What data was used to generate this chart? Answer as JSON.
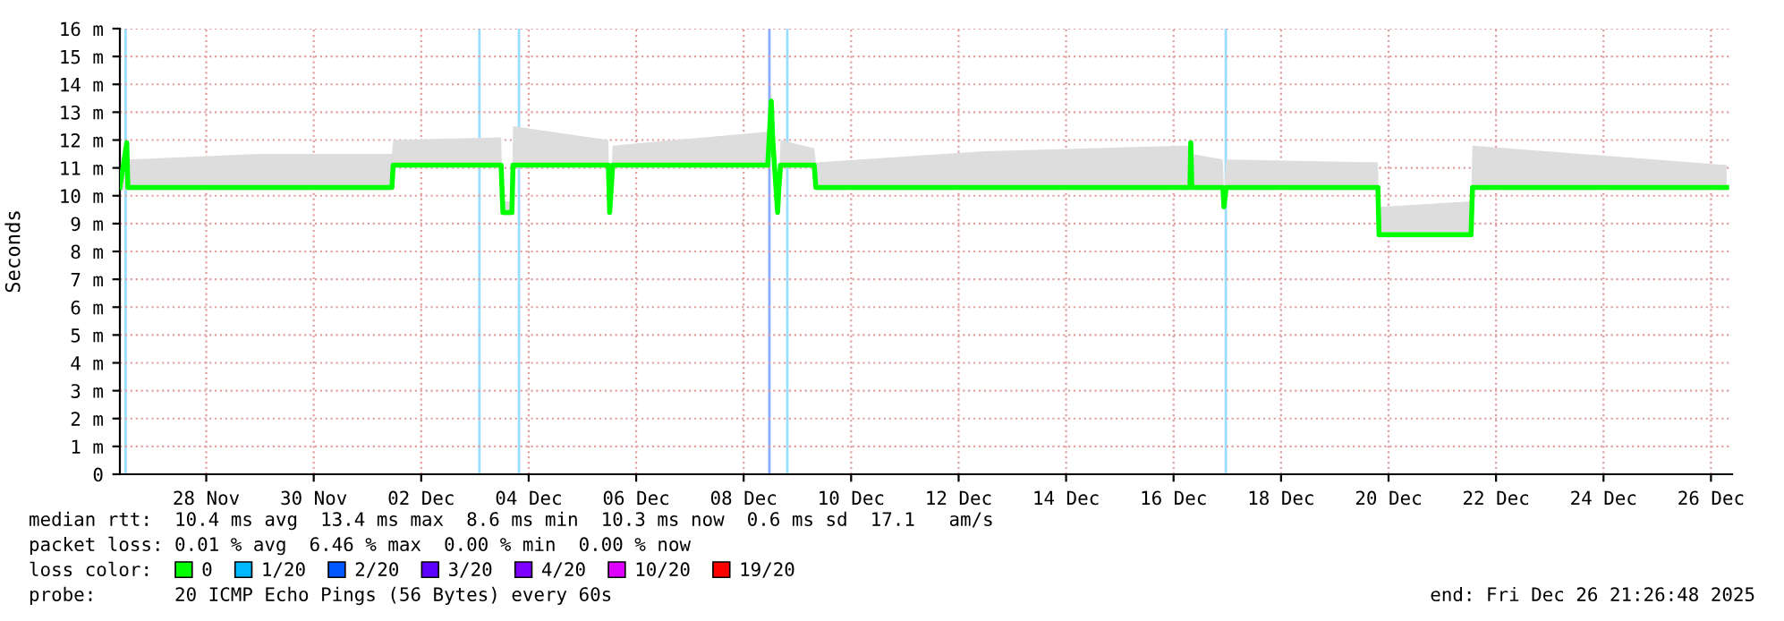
{
  "chart_data": {
    "type": "line",
    "ylabel": "Seconds",
    "xlim": [
      "2025-11-26T21:26",
      "2025-12-26T21:26"
    ],
    "xticks": [
      {
        "value": "2025-11-28T12:00",
        "label": "28 Nov"
      },
      {
        "value": "2025-11-30T12:00",
        "label": "30 Nov"
      },
      {
        "value": "2025-12-02T12:00",
        "label": "02 Dec"
      },
      {
        "value": "2025-12-04T12:00",
        "label": "04 Dec"
      },
      {
        "value": "2025-12-06T12:00",
        "label": "06 Dec"
      },
      {
        "value": "2025-12-08T12:00",
        "label": "08 Dec"
      },
      {
        "value": "2025-12-10T12:00",
        "label": "10 Dec"
      },
      {
        "value": "2025-12-12T12:00",
        "label": "12 Dec"
      },
      {
        "value": "2025-12-14T12:00",
        "label": "14 Dec"
      },
      {
        "value": "2025-12-16T12:00",
        "label": "16 Dec"
      },
      {
        "value": "2025-12-18T12:00",
        "label": "18 Dec"
      },
      {
        "value": "2025-12-20T12:00",
        "label": "20 Dec"
      },
      {
        "value": "2025-12-22T12:00",
        "label": "22 Dec"
      },
      {
        "value": "2025-12-24T12:00",
        "label": "24 Dec"
      },
      {
        "value": "2025-12-26T12:00",
        "label": "26 Dec"
      }
    ],
    "ylim": [
      0,
      16
    ],
    "yticks": [
      0,
      {
        "value": 1,
        "label": "1 m"
      },
      {
        "value": 2,
        "label": "2 m"
      },
      {
        "value": 3,
        "label": "3 m"
      },
      {
        "value": 4,
        "label": "4 m"
      },
      {
        "value": 5,
        "label": "5 m"
      },
      {
        "value": 6,
        "label": "6 m"
      },
      {
        "value": 7,
        "label": "7 m"
      },
      {
        "value": 8,
        "label": "8 m"
      },
      {
        "value": 9,
        "label": "9 m"
      },
      {
        "value": 10,
        "label": "10 m"
      },
      {
        "value": 11,
        "label": "11 m"
      },
      {
        "value": 12,
        "label": "12 m"
      },
      {
        "value": 13,
        "label": "13 m"
      },
      {
        "value": 14,
        "label": "14 m"
      },
      {
        "value": 15,
        "label": "15 m"
      },
      {
        "value": 16,
        "label": "16 m"
      }
    ],
    "grid": true,
    "legend": "bottom",
    "legend_title": "loss color:",
    "line_style": "solid",
    "series": [
      {
        "name": "0",
        "color": "#00ff00",
        "x": [
          "2025-11-26T21:26",
          "2025-11-27T00:30",
          "2025-11-27T01:00",
          "2025-11-29T12:00",
          "2025-12-01T22:55",
          "2025-12-01T23:30",
          "2025-12-03T23:40",
          "2025-12-04T00:30",
          "2025-12-04T04:30",
          "2025-12-04T05:00",
          "2025-12-05T23:35",
          "2025-12-06T00:10",
          "2025-12-06T01:30",
          "2025-12-08T22:45",
          "2025-12-09T00:20",
          "2025-12-09T01:00",
          "2025-12-09T02:30",
          "2025-12-09T03:10",
          "2025-12-09T03:40",
          "2025-12-09T04:30",
          "2025-12-09T19:30",
          "2025-12-09T20:15",
          "2025-12-13T00:00",
          "2025-12-16T19:20",
          "2025-12-16T19:40",
          "2025-12-16T20:10",
          "2025-12-17T10:00",
          "2025-12-17T10:30",
          "2025-12-17T11:30",
          "2025-12-20T07:15",
          "2025-12-20T07:45",
          "2025-12-22T00:50",
          "2025-12-22T01:30",
          "2025-12-26T19:00"
        ],
        "values": [
          10.3,
          11.9,
          10.3,
          10.3,
          10.3,
          11.1,
          11.1,
          9.4,
          9.4,
          11.1,
          11.1,
          9.4,
          11.1,
          11.1,
          13.4,
          12.0,
          10.2,
          9.4,
          10.2,
          11.1,
          11.1,
          10.3,
          10.3,
          10.3,
          11.9,
          10.3,
          10.3,
          9.6,
          10.3,
          10.3,
          8.6,
          8.6,
          10.3,
          10.3
        ],
        "lower": [
          10.2,
          10.2,
          10.2,
          10.2,
          10.2,
          11.0,
          11.0,
          9.3,
          9.3,
          11.0,
          11.0,
          9.3,
          11.0,
          11.0,
          13.0,
          11.0,
          10.1,
          9.3,
          10.1,
          11.0,
          11.0,
          10.2,
          10.2,
          10.2,
          10.3,
          10.2,
          10.2,
          9.5,
          10.2,
          10.2,
          8.5,
          8.5,
          10.2,
          10.2
        ],
        "upper": [
          11.0,
          11.9,
          11.3,
          11.5,
          11.5,
          12.0,
          12.1,
          9.8,
          9.8,
          12.5,
          12.0,
          9.5,
          11.8,
          12.3,
          14.0,
          12.5,
          10.5,
          9.5,
          10.5,
          12.0,
          11.7,
          11.2,
          11.6,
          11.8,
          12.2,
          11.5,
          11.3,
          10.2,
          11.3,
          11.2,
          9.6,
          9.8,
          11.8,
          11.1
        ]
      },
      {
        "name": "1/20",
        "color": "#00b8ff"
      },
      {
        "name": "2/20",
        "color": "#0059ff"
      },
      {
        "name": "3/20",
        "color": "#5e00ff"
      },
      {
        "name": "4/20",
        "color": "#7e00ff"
      },
      {
        "name": "10/20",
        "color": "#dd00ff"
      },
      {
        "name": "19/20",
        "color": "#ff0000"
      }
    ],
    "ref_lines": [
      {
        "axis": "x",
        "value": "2025-11-27T00:00",
        "color": "#99ddff"
      },
      {
        "axis": "x",
        "value": "2025-12-03T14:00",
        "color": "#99ddff"
      },
      {
        "axis": "x",
        "value": "2025-12-04T07:40",
        "color": "#99ddff"
      },
      {
        "axis": "x",
        "value": "2025-12-08T23:30",
        "color": "#88aaff"
      },
      {
        "axis": "x",
        "value": "2025-12-09T07:30",
        "color": "#99ddff"
      },
      {
        "axis": "x",
        "value": "2025-12-17T11:20",
        "color": "#99ddff"
      }
    ],
    "annotations": [
      "median rtt:  10.4 ms avg  13.4 ms max  8.6 ms min  10.3 ms now  0.6 ms sd  17.1   am/s",
      "packet loss: 0.01 % avg  6.46 % max  0.00 % min  0.00 % now",
      "probe:       20 ICMP Echo Pings (56 Bytes) every 60s",
      "end: Fri Dec 26 21:26:48 2025"
    ]
  }
}
